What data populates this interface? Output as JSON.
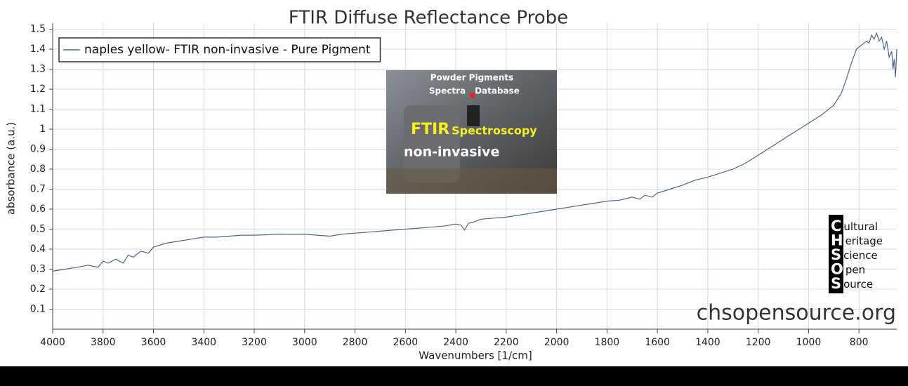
{
  "chart_data": {
    "type": "line",
    "title": "FTIR Diffuse Reflectance Probe",
    "xlabel": "Wavenumbers [1/cm]",
    "ylabel": "absorbance (a.u.)",
    "xlim": [
      4000,
      650
    ],
    "ylim": [
      0,
      1.53
    ],
    "xticks": [
      4000,
      3800,
      3600,
      3400,
      3200,
      3000,
      2800,
      2600,
      2400,
      2200,
      2000,
      1800,
      1600,
      1400,
      1200,
      1000,
      800
    ],
    "yticks": [
      0.1,
      0.2,
      0.3,
      0.4,
      0.5,
      0.6,
      0.7,
      0.8,
      0.9,
      1,
      1.1,
      1.2,
      1.3,
      1.4,
      1.5
    ],
    "grid": true,
    "legend": "upper left",
    "series": [
      {
        "name": "naples yellow- FTIR non-invasive - Pure Pigment",
        "color": "#4f6688",
        "x": [
          4000,
          3950,
          3900,
          3860,
          3820,
          3800,
          3780,
          3750,
          3720,
          3700,
          3680,
          3650,
          3620,
          3600,
          3550,
          3500,
          3450,
          3400,
          3350,
          3300,
          3250,
          3200,
          3150,
          3100,
          3050,
          3000,
          2950,
          2900,
          2850,
          2800,
          2750,
          2700,
          2650,
          2600,
          2550,
          2500,
          2450,
          2400,
          2380,
          2365,
          2350,
          2330,
          2300,
          2250,
          2200,
          2150,
          2100,
          2050,
          2000,
          1950,
          1900,
          1850,
          1800,
          1750,
          1700,
          1670,
          1650,
          1620,
          1600,
          1550,
          1500,
          1450,
          1400,
          1350,
          1300,
          1250,
          1200,
          1150,
          1100,
          1050,
          1000,
          950,
          900,
          870,
          850,
          830,
          810,
          790,
          770,
          760,
          750,
          740,
          730,
          720,
          710,
          700,
          690,
          680,
          670,
          665,
          660,
          655,
          650
        ],
        "values": [
          0.29,
          0.3,
          0.31,
          0.32,
          0.31,
          0.34,
          0.33,
          0.35,
          0.33,
          0.37,
          0.36,
          0.39,
          0.38,
          0.41,
          0.43,
          0.44,
          0.45,
          0.46,
          0.46,
          0.465,
          0.47,
          0.47,
          0.472,
          0.475,
          0.474,
          0.475,
          0.47,
          0.465,
          0.475,
          0.48,
          0.485,
          0.49,
          0.495,
          0.5,
          0.505,
          0.51,
          0.515,
          0.525,
          0.52,
          0.495,
          0.53,
          0.535,
          0.55,
          0.555,
          0.56,
          0.57,
          0.58,
          0.59,
          0.6,
          0.61,
          0.62,
          0.63,
          0.64,
          0.645,
          0.66,
          0.65,
          0.67,
          0.66,
          0.68,
          0.7,
          0.72,
          0.745,
          0.76,
          0.78,
          0.8,
          0.83,
          0.87,
          0.91,
          0.95,
          0.99,
          1.03,
          1.07,
          1.12,
          1.18,
          1.25,
          1.33,
          1.4,
          1.42,
          1.44,
          1.43,
          1.47,
          1.45,
          1.48,
          1.44,
          1.46,
          1.4,
          1.44,
          1.36,
          1.39,
          1.3,
          1.35,
          1.26,
          1.4
        ]
      }
    ],
    "inset": [
      "Powder Pigments",
      "Spectra",
      "Database",
      "FTIR",
      "Spectroscopy",
      "non-invasive"
    ],
    "logo": [
      "Cultural",
      "Heritage",
      "Science",
      "Open",
      "Source"
    ],
    "website": "chsopensource.org"
  }
}
